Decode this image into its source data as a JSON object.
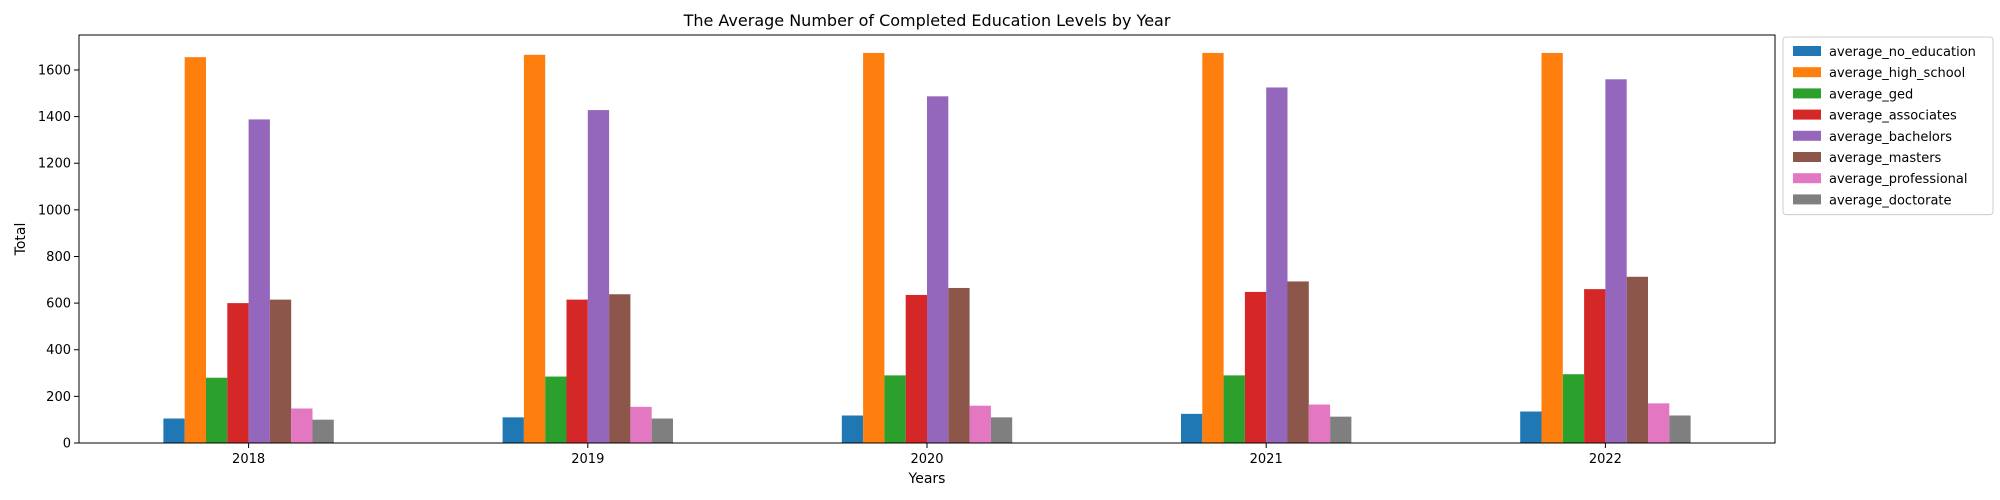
{
  "chart_data": {
    "type": "bar",
    "title": "The Average Number of Completed Education Levels by Year",
    "xlabel": "Years",
    "ylabel": "Total",
    "categories": [
      "2018",
      "2019",
      "2020",
      "2021",
      "2022"
    ],
    "ylim": [
      0,
      1750
    ],
    "yticks": [
      0,
      200,
      400,
      600,
      800,
      1000,
      1200,
      1400,
      1600
    ],
    "grid": false,
    "legend_position": "outside-top-right",
    "series": [
      {
        "name": "average_no_education",
        "color": "#1f77b4",
        "values": [
          105,
          110,
          118,
          125,
          135
        ]
      },
      {
        "name": "average_high_school",
        "color": "#ff7f0e",
        "values": [
          1655,
          1665,
          1673,
          1673,
          1673
        ]
      },
      {
        "name": "average_ged",
        "color": "#2ca02c",
        "values": [
          280,
          285,
          290,
          290,
          295
        ]
      },
      {
        "name": "average_associates",
        "color": "#d62728",
        "values": [
          600,
          615,
          635,
          648,
          660
        ]
      },
      {
        "name": "average_bachelors",
        "color": "#9467bd",
        "values": [
          1388,
          1428,
          1487,
          1525,
          1560
        ]
      },
      {
        "name": "average_masters",
        "color": "#8c564b",
        "values": [
          615,
          638,
          665,
          693,
          713
        ]
      },
      {
        "name": "average_professional",
        "color": "#e377c2",
        "values": [
          148,
          155,
          160,
          165,
          170
        ]
      },
      {
        "name": "average_doctorate",
        "color": "#7f7f7f",
        "values": [
          100,
          105,
          110,
          113,
          118
        ]
      }
    ]
  }
}
